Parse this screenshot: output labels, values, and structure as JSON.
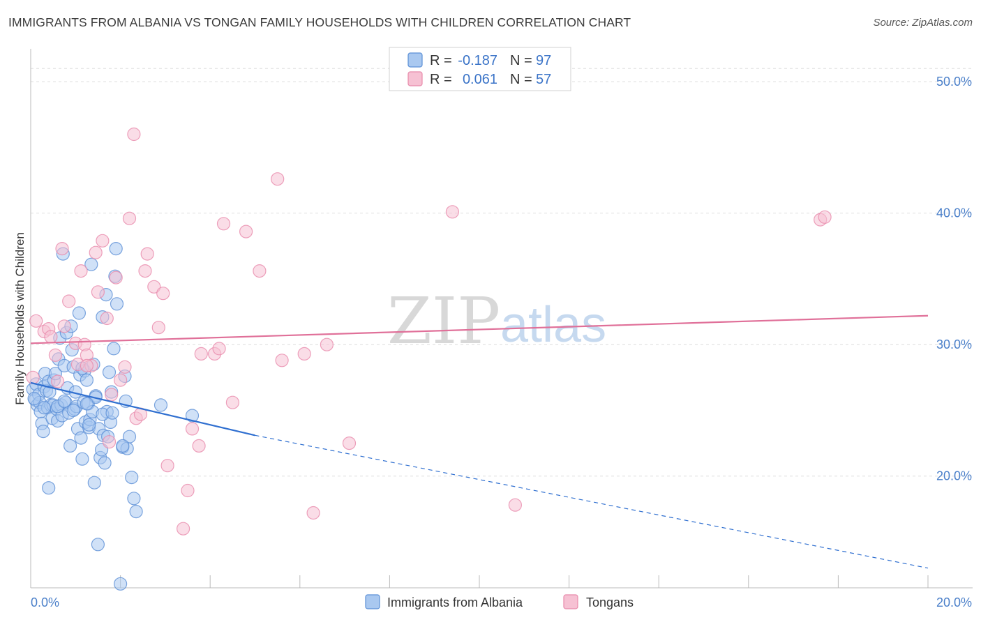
{
  "header": {
    "title": "IMMIGRANTS FROM ALBANIA VS TONGAN FAMILY HOUSEHOLDS WITH CHILDREN CORRELATION CHART",
    "source": "Source: ZipAtlas.com"
  },
  "watermark": {
    "zip": "ZIP",
    "atlas": "atlas"
  },
  "colors": {
    "albania_fill": "#a9c8f0",
    "albania_stroke": "#5b8fd6",
    "albania_line": "#2f6fd0",
    "tongan_fill": "#f6c1d3",
    "tongan_stroke": "#e88aab",
    "tongan_line": "#e07099",
    "grid": "#dddddd",
    "tick_label": "#4a7fc9"
  },
  "legend": {
    "rows": [
      {
        "r_label": "R =",
        "r_value": "-0.187",
        "n_label": "N =",
        "n_value": "97"
      },
      {
        "r_label": "R =",
        "r_value": "0.061",
        "n_label": "N =",
        "n_value": "57"
      }
    ]
  },
  "chart_data": {
    "type": "scatter",
    "title": "IMMIGRANTS FROM ALBANIA VS TONGAN FAMILY HOUSEHOLDS WITH CHILDREN CORRELATION CHART",
    "xlabel": "",
    "ylabel": "Family Households with Children",
    "xlim": [
      0,
      20
    ],
    "ylim": [
      11.5,
      52.5
    ],
    "x_tick_labels": [
      {
        "value": 0,
        "label": "0.0%"
      },
      {
        "value": 20,
        "label": "20.0%"
      }
    ],
    "y_ticks": [
      {
        "value": 20,
        "label": "20.0%"
      },
      {
        "value": 30,
        "label": "30.0%"
      },
      {
        "value": 40,
        "label": "40.0%"
      },
      {
        "value": 50,
        "label": "50.0%"
      }
    ],
    "x_minor_ticks": [
      2,
      4,
      6,
      8,
      10,
      12,
      14,
      16,
      18,
      20
    ],
    "grid": true,
    "legend_position": "top-center",
    "series": [
      {
        "name": "Immigrants from Albania",
        "R": -0.187,
        "N": 97,
        "trend": {
          "x0": 0,
          "y0": 27.1,
          "x1": 5.0,
          "y1": 23.1,
          "dashed_to_x": 20,
          "dashed_to_y": 13.0
        },
        "points": [
          [
            0.05,
            26.6
          ],
          [
            0.1,
            25.8
          ],
          [
            0.12,
            27.0
          ],
          [
            0.15,
            25.4
          ],
          [
            0.18,
            26.2
          ],
          [
            0.2,
            25.6
          ],
          [
            0.22,
            24.9
          ],
          [
            0.25,
            24.0
          ],
          [
            0.28,
            23.4
          ],
          [
            0.3,
            26.8
          ],
          [
            0.32,
            27.8
          ],
          [
            0.35,
            26.5
          ],
          [
            0.38,
            25.2
          ],
          [
            0.4,
            27.2
          ],
          [
            0.42,
            26.4
          ],
          [
            0.45,
            25.4
          ],
          [
            0.48,
            24.4
          ],
          [
            0.5,
            25.4
          ],
          [
            0.52,
            27.3
          ],
          [
            0.55,
            27.8
          ],
          [
            0.58,
            25.1
          ],
          [
            0.6,
            24.2
          ],
          [
            0.62,
            28.9
          ],
          [
            0.65,
            30.5
          ],
          [
            0.68,
            25.4
          ],
          [
            0.7,
            24.6
          ],
          [
            0.72,
            36.9
          ],
          [
            0.75,
            28.4
          ],
          [
            0.78,
            25.6
          ],
          [
            0.8,
            30.9
          ],
          [
            0.82,
            26.7
          ],
          [
            0.85,
            24.8
          ],
          [
            0.88,
            22.3
          ],
          [
            0.9,
            31.4
          ],
          [
            0.92,
            29.6
          ],
          [
            0.95,
            28.3
          ],
          [
            0.98,
            25.1
          ],
          [
            1.0,
            26.4
          ],
          [
            1.02,
            25.3
          ],
          [
            1.05,
            23.6
          ],
          [
            1.08,
            32.4
          ],
          [
            1.1,
            27.7
          ],
          [
            1.12,
            22.9
          ],
          [
            1.15,
            21.3
          ],
          [
            1.18,
            25.6
          ],
          [
            1.2,
            28.0
          ],
          [
            1.22,
            24.1
          ],
          [
            1.25,
            27.3
          ],
          [
            1.28,
            25.5
          ],
          [
            1.3,
            23.7
          ],
          [
            1.32,
            24.3
          ],
          [
            1.35,
            36.1
          ],
          [
            1.38,
            24.9
          ],
          [
            1.4,
            28.5
          ],
          [
            1.42,
            19.5
          ],
          [
            1.45,
            26.1
          ],
          [
            1.5,
            14.8
          ],
          [
            1.52,
            23.6
          ],
          [
            1.55,
            21.4
          ],
          [
            1.58,
            22.0
          ],
          [
            1.6,
            32.1
          ],
          [
            1.62,
            23.1
          ],
          [
            1.65,
            21.0
          ],
          [
            1.68,
            33.8
          ],
          [
            1.7,
            24.9
          ],
          [
            1.72,
            23.0
          ],
          [
            1.75,
            27.9
          ],
          [
            1.78,
            24.1
          ],
          [
            1.8,
            26.4
          ],
          [
            1.85,
            29.7
          ],
          [
            1.88,
            35.2
          ],
          [
            1.9,
            37.3
          ],
          [
            1.92,
            33.1
          ],
          [
            2.0,
            11.8
          ],
          [
            2.05,
            22.2
          ],
          [
            2.1,
            27.6
          ],
          [
            2.12,
            25.7
          ],
          [
            2.15,
            22.1
          ],
          [
            2.2,
            23.0
          ],
          [
            2.25,
            19.9
          ],
          [
            2.3,
            18.3
          ],
          [
            2.35,
            17.3
          ],
          [
            2.9,
            25.4
          ],
          [
            3.6,
            24.6
          ],
          [
            0.08,
            25.9
          ],
          [
            0.4,
            19.1
          ],
          [
            0.6,
            25.3
          ],
          [
            0.75,
            25.7
          ],
          [
            0.95,
            25.0
          ],
          [
            1.15,
            28.2
          ],
          [
            1.3,
            23.9
          ],
          [
            1.45,
            26.0
          ],
          [
            1.6,
            24.7
          ],
          [
            1.82,
            24.8
          ],
          [
            2.05,
            22.3
          ],
          [
            1.25,
            25.5
          ],
          [
            0.3,
            25.2
          ]
        ]
      },
      {
        "name": "Tongans",
        "R": 0.061,
        "N": 57,
        "trend": {
          "x0": 0,
          "y0": 30.1,
          "x1": 20,
          "y1": 32.2
        },
        "points": [
          [
            0.05,
            27.5
          ],
          [
            0.12,
            31.8
          ],
          [
            0.3,
            31.0
          ],
          [
            0.4,
            31.2
          ],
          [
            0.45,
            30.6
          ],
          [
            0.55,
            29.2
          ],
          [
            0.6,
            27.2
          ],
          [
            0.7,
            37.3
          ],
          [
            0.75,
            31.4
          ],
          [
            0.85,
            33.3
          ],
          [
            1.0,
            30.1
          ],
          [
            1.05,
            28.5
          ],
          [
            1.12,
            35.6
          ],
          [
            1.2,
            30.0
          ],
          [
            1.25,
            29.2
          ],
          [
            1.35,
            28.4
          ],
          [
            1.45,
            37.0
          ],
          [
            1.5,
            34.0
          ],
          [
            1.6,
            37.9
          ],
          [
            1.7,
            32.0
          ],
          [
            1.75,
            22.6
          ],
          [
            1.8,
            26.2
          ],
          [
            1.9,
            35.1
          ],
          [
            2.0,
            27.3
          ],
          [
            2.1,
            28.3
          ],
          [
            2.2,
            39.6
          ],
          [
            2.3,
            46.0
          ],
          [
            2.35,
            24.4
          ],
          [
            2.45,
            24.7
          ],
          [
            2.55,
            35.6
          ],
          [
            2.6,
            36.9
          ],
          [
            2.75,
            34.4
          ],
          [
            2.85,
            31.3
          ],
          [
            2.95,
            33.9
          ],
          [
            3.05,
            20.8
          ],
          [
            3.4,
            16.0
          ],
          [
            3.5,
            18.9
          ],
          [
            3.6,
            23.6
          ],
          [
            3.75,
            22.3
          ],
          [
            3.8,
            29.3
          ],
          [
            4.1,
            29.3
          ],
          [
            4.2,
            29.7
          ],
          [
            4.3,
            39.2
          ],
          [
            4.5,
            25.6
          ],
          [
            4.8,
            38.6
          ],
          [
            5.1,
            35.6
          ],
          [
            5.5,
            42.6
          ],
          [
            5.6,
            28.8
          ],
          [
            6.1,
            29.3
          ],
          [
            6.3,
            17.2
          ],
          [
            6.6,
            30.0
          ],
          [
            7.1,
            22.5
          ],
          [
            9.4,
            40.1
          ],
          [
            10.8,
            17.8
          ],
          [
            17.6,
            39.5
          ],
          [
            17.7,
            39.7
          ],
          [
            1.25,
            28.4
          ]
        ]
      }
    ]
  }
}
